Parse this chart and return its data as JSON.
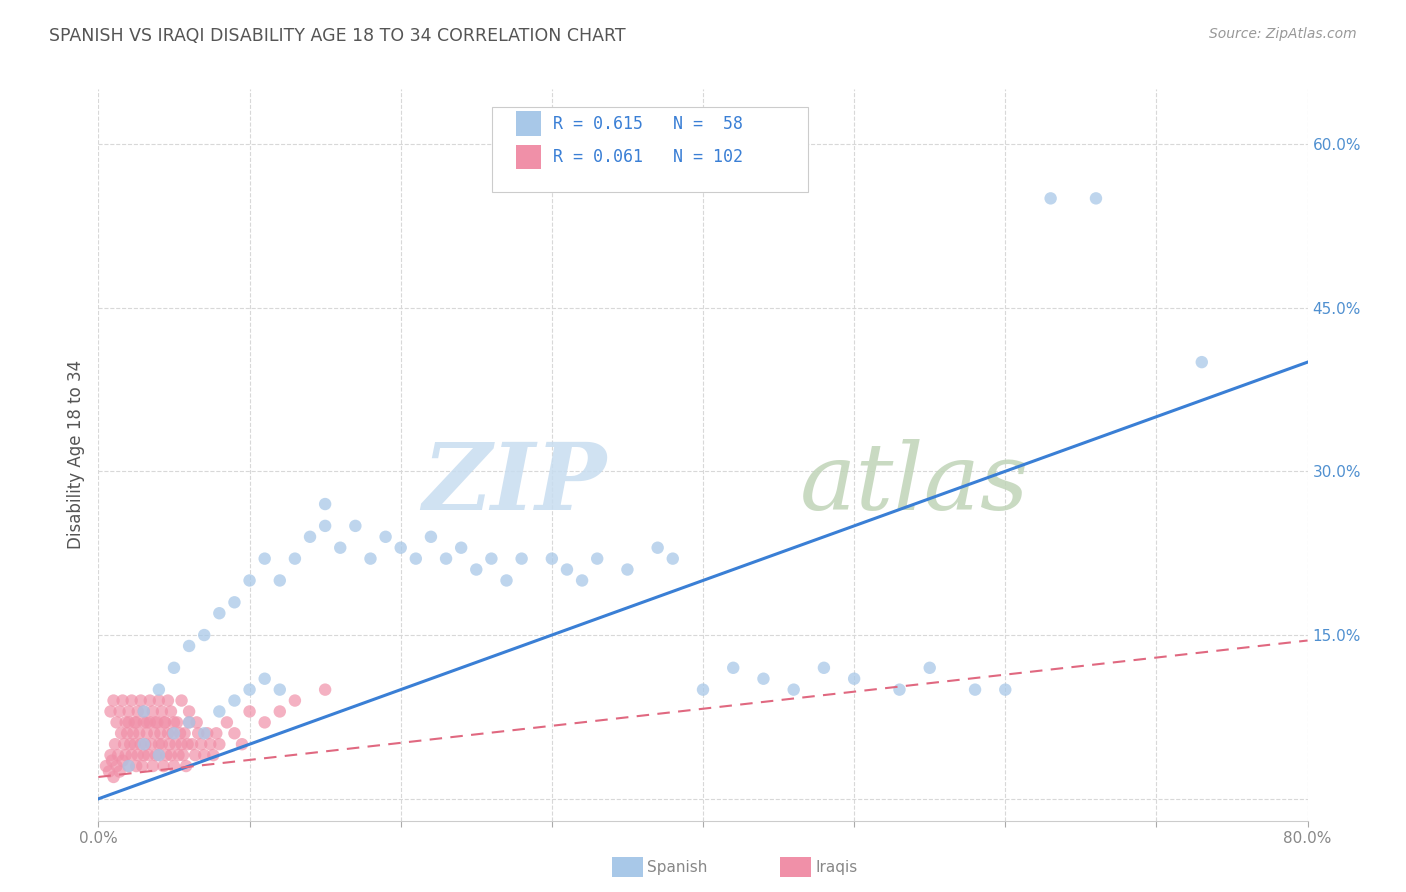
{
  "title": "SPANISH VS IRAQI DISABILITY AGE 18 TO 34 CORRELATION CHART",
  "source": "Source: ZipAtlas.com",
  "ylabel": "Disability Age 18 to 34",
  "xlim": [
    0.0,
    0.8
  ],
  "ylim": [
    -0.02,
    0.65
  ],
  "spanish_r": 0.615,
  "spanish_n": 58,
  "iraqi_r": 0.061,
  "iraqi_n": 102,
  "spanish_color": "#a8c8e8",
  "iraqi_color": "#f090a8",
  "spanish_line_color": "#3a7fd5",
  "iraqi_line_color": "#e06880",
  "watermark_zip": "ZIP",
  "watermark_atlas": "atlas",
  "watermark_color": "#d5e8f5",
  "watermark_atlas_color": "#c8d8c8",
  "background_color": "#ffffff",
  "grid_color": "#d8d8d8",
  "title_color": "#555555",
  "legend_text_color": "#3a7fd5",
  "spanish_scatter_x": [
    0.02,
    0.03,
    0.03,
    0.04,
    0.04,
    0.05,
    0.05,
    0.06,
    0.06,
    0.07,
    0.07,
    0.08,
    0.08,
    0.09,
    0.09,
    0.1,
    0.1,
    0.11,
    0.11,
    0.12,
    0.12,
    0.13,
    0.14,
    0.15,
    0.15,
    0.16,
    0.17,
    0.18,
    0.19,
    0.2,
    0.21,
    0.22,
    0.23,
    0.24,
    0.25,
    0.26,
    0.27,
    0.28,
    0.3,
    0.31,
    0.32,
    0.33,
    0.35,
    0.37,
    0.38,
    0.4,
    0.42,
    0.44,
    0.46,
    0.48,
    0.5,
    0.53,
    0.55,
    0.58,
    0.6,
    0.63,
    0.66,
    0.73
  ],
  "spanish_scatter_y": [
    0.03,
    0.05,
    0.08,
    0.04,
    0.1,
    0.06,
    0.12,
    0.07,
    0.14,
    0.06,
    0.15,
    0.08,
    0.17,
    0.09,
    0.18,
    0.1,
    0.2,
    0.11,
    0.22,
    0.1,
    0.2,
    0.22,
    0.24,
    0.25,
    0.27,
    0.23,
    0.25,
    0.22,
    0.24,
    0.23,
    0.22,
    0.24,
    0.22,
    0.23,
    0.21,
    0.22,
    0.2,
    0.22,
    0.22,
    0.21,
    0.2,
    0.22,
    0.21,
    0.23,
    0.22,
    0.1,
    0.12,
    0.11,
    0.1,
    0.12,
    0.11,
    0.1,
    0.12,
    0.1,
    0.1,
    0.55,
    0.55,
    0.4
  ],
  "iraqi_scatter_x": [
    0.005,
    0.007,
    0.008,
    0.009,
    0.01,
    0.011,
    0.012,
    0.013,
    0.014,
    0.015,
    0.016,
    0.017,
    0.018,
    0.019,
    0.02,
    0.02,
    0.021,
    0.022,
    0.023,
    0.024,
    0.025,
    0.025,
    0.026,
    0.027,
    0.028,
    0.029,
    0.03,
    0.03,
    0.031,
    0.032,
    0.033,
    0.034,
    0.035,
    0.036,
    0.037,
    0.038,
    0.039,
    0.04,
    0.04,
    0.041,
    0.042,
    0.043,
    0.044,
    0.045,
    0.046,
    0.047,
    0.048,
    0.049,
    0.05,
    0.051,
    0.052,
    0.053,
    0.054,
    0.055,
    0.056,
    0.057,
    0.058,
    0.059,
    0.06,
    0.062,
    0.064,
    0.066,
    0.068,
    0.07,
    0.072,
    0.074,
    0.076,
    0.078,
    0.08,
    0.085,
    0.09,
    0.095,
    0.1,
    0.11,
    0.12,
    0.13,
    0.15,
    0.008,
    0.01,
    0.012,
    0.014,
    0.016,
    0.018,
    0.02,
    0.022,
    0.024,
    0.026,
    0.028,
    0.03,
    0.032,
    0.034,
    0.036,
    0.038,
    0.04,
    0.042,
    0.044,
    0.046,
    0.048,
    0.05,
    0.055,
    0.06,
    0.065
  ],
  "iraqi_scatter_y": [
    0.03,
    0.025,
    0.04,
    0.035,
    0.02,
    0.05,
    0.03,
    0.04,
    0.025,
    0.06,
    0.035,
    0.05,
    0.04,
    0.06,
    0.03,
    0.07,
    0.05,
    0.04,
    0.06,
    0.05,
    0.03,
    0.07,
    0.04,
    0.06,
    0.05,
    0.03,
    0.07,
    0.04,
    0.05,
    0.06,
    0.04,
    0.07,
    0.05,
    0.03,
    0.06,
    0.04,
    0.07,
    0.05,
    0.04,
    0.06,
    0.05,
    0.03,
    0.07,
    0.04,
    0.06,
    0.05,
    0.04,
    0.06,
    0.03,
    0.05,
    0.07,
    0.04,
    0.06,
    0.05,
    0.04,
    0.06,
    0.03,
    0.05,
    0.07,
    0.05,
    0.04,
    0.06,
    0.05,
    0.04,
    0.06,
    0.05,
    0.04,
    0.06,
    0.05,
    0.07,
    0.06,
    0.05,
    0.08,
    0.07,
    0.08,
    0.09,
    0.1,
    0.08,
    0.09,
    0.07,
    0.08,
    0.09,
    0.07,
    0.08,
    0.09,
    0.07,
    0.08,
    0.09,
    0.08,
    0.07,
    0.09,
    0.08,
    0.07,
    0.09,
    0.08,
    0.07,
    0.09,
    0.08,
    0.07,
    0.09,
    0.08,
    0.07
  ],
  "spanish_line_x0": 0.0,
  "spanish_line_y0": 0.0,
  "spanish_line_x1": 0.8,
  "spanish_line_y1": 0.4,
  "iraqi_line_x0": 0.0,
  "iraqi_line_y0": 0.02,
  "iraqi_line_x1": 0.8,
  "iraqi_line_y1": 0.145
}
